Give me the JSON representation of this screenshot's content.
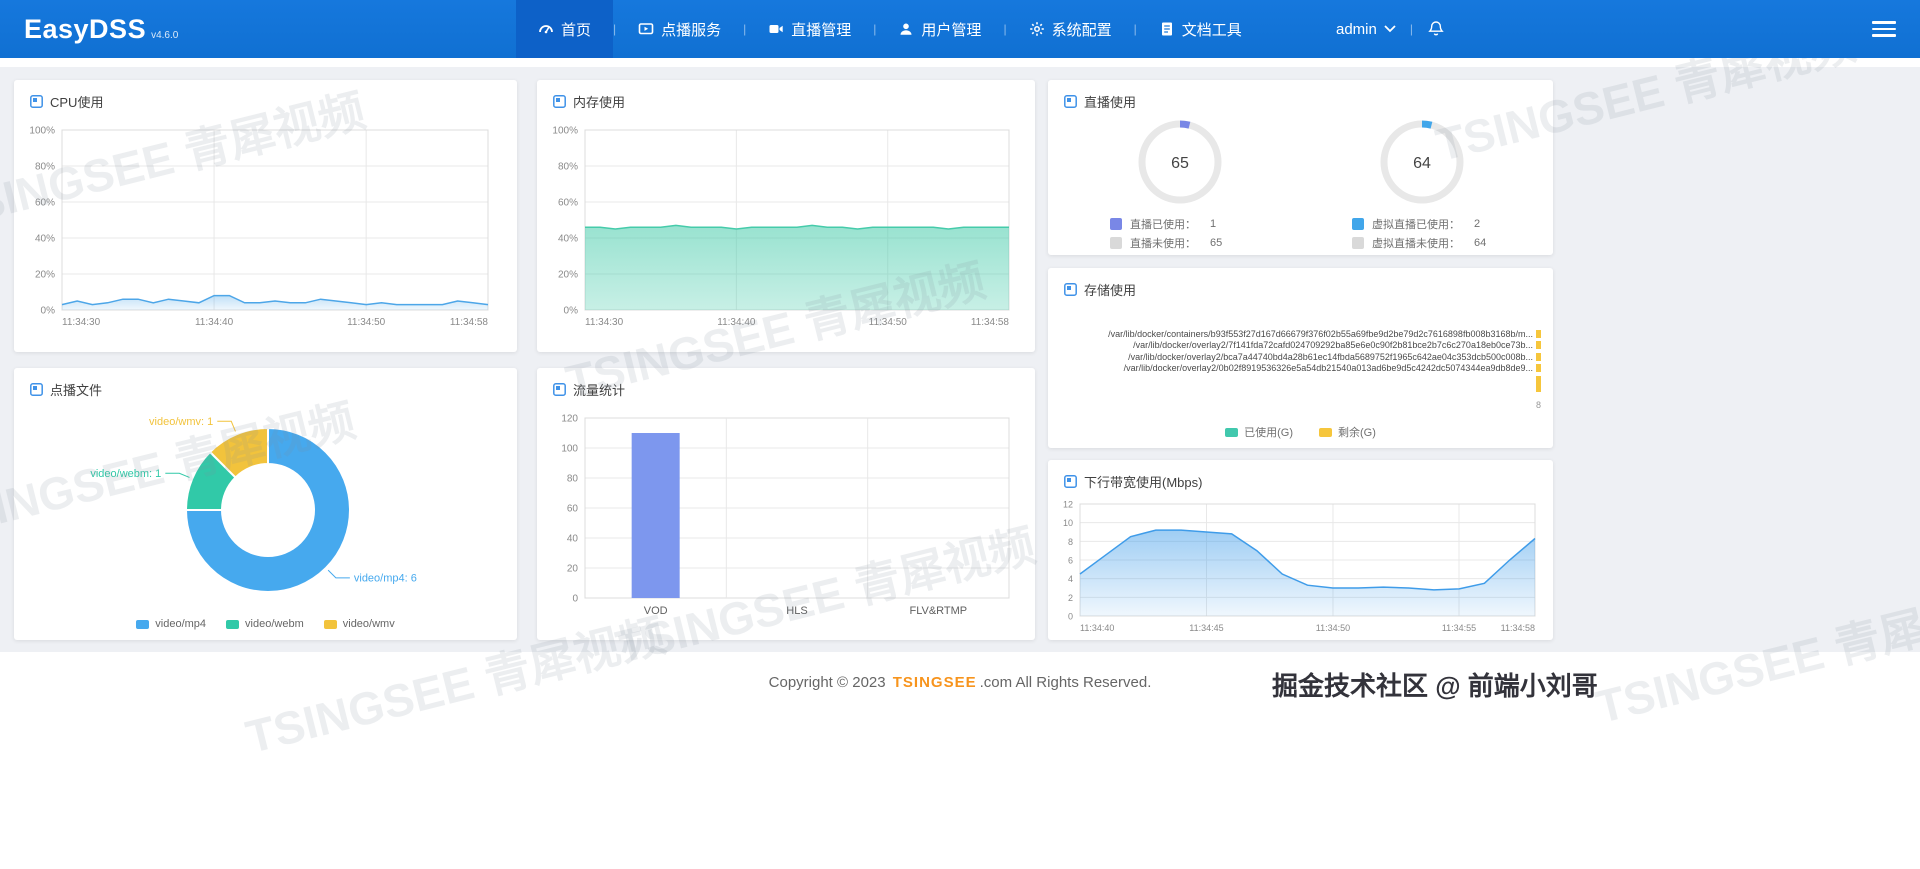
{
  "navbar": {
    "brand": "EasyDSS",
    "version": "v4.6.0",
    "items": [
      {
        "label": "首页"
      },
      {
        "label": "点播服务"
      },
      {
        "label": "直播管理"
      },
      {
        "label": "用户管理"
      },
      {
        "label": "系统配置"
      },
      {
        "label": "文档工具"
      }
    ],
    "user": "admin"
  },
  "cards": {
    "cpu": {
      "title": "CPU使用"
    },
    "memory": {
      "title": "内存使用"
    },
    "live": {
      "title": "直播使用"
    },
    "storage": {
      "title": "存储使用"
    },
    "vod": {
      "title": "点播文件"
    },
    "traffic": {
      "title": "流量统计"
    },
    "bandwidth": {
      "title": "下行带宽使用(Mbps)"
    }
  },
  "chart_data": [
    {
      "id": "cpu",
      "type": "line",
      "title": "CPU使用",
      "ylim": [
        0,
        100
      ],
      "y_ticks": [
        "0%",
        "20%",
        "40%",
        "60%",
        "80%",
        "100%"
      ],
      "x_ticks": [
        {
          "label": "11:34:30",
          "pos": 0
        },
        {
          "label": "11:34:40",
          "pos": 0.357
        },
        {
          "label": "11:34:50",
          "pos": 0.714
        },
        {
          "label": "11:34:58",
          "pos": 1
        }
      ],
      "values": [
        3,
        5,
        3,
        4,
        6,
        6,
        4,
        6,
        5,
        4,
        8,
        8,
        4,
        4,
        5,
        4,
        4,
        6,
        5,
        4,
        3,
        4,
        3,
        3,
        3,
        3,
        5,
        4,
        3
      ],
      "color": "#4da6e8",
      "fill": [
        0.35,
        0.08
      ]
    },
    {
      "id": "memory",
      "type": "line",
      "title": "内存使用",
      "ylim": [
        0,
        100
      ],
      "y_ticks": [
        "0%",
        "20%",
        "40%",
        "60%",
        "80%",
        "100%"
      ],
      "x_ticks": [
        {
          "label": "11:34:30",
          "pos": 0
        },
        {
          "label": "11:34:40",
          "pos": 0.357
        },
        {
          "label": "11:34:50",
          "pos": 0.714
        },
        {
          "label": "11:34:58",
          "pos": 1
        }
      ],
      "values": [
        46,
        46,
        45,
        46,
        46,
        46,
        47,
        46,
        46,
        46,
        45,
        46,
        46,
        46,
        46,
        47,
        46,
        46,
        45,
        46,
        46,
        46,
        46,
        46,
        45,
        46,
        46,
        46,
        46
      ],
      "color": "#45cbaa",
      "fill": [
        0.55,
        0.3
      ]
    },
    {
      "id": "live_gauges",
      "type": "donut-gauge",
      "title": "直播使用",
      "gauges": [
        {
          "center": 65,
          "used": 1,
          "free": 65,
          "used_label": "直播已使用：",
          "free_label": "直播未使用：",
          "color": "#7987e6",
          "free_color": "#d9d9d9"
        },
        {
          "center": 64,
          "used": 2,
          "free": 64,
          "used_label": "虚拟直播已使用：",
          "free_label": "虚拟直播未使用：",
          "color": "#41a6ea",
          "free_color": "#d9d9d9"
        }
      ]
    },
    {
      "id": "storage",
      "type": "hbar",
      "title": "存储使用",
      "categories": [
        "/var/lib/docker/containers/b93f553f27d167d66679f376f02b55a69fbe9d2be79d2c7616898fb008b3168b/m...",
        "/var/lib/docker/overlay2/7f141fda72cafd024709292ba85e6e0c90f2b81bce2b7c6c270a18eb0ce73b...",
        "/var/lib/docker/overlay2/bca7a44740bd4a28b61ec14fbda5689752f1965c642ae04c353dcb500c008b...",
        "/var/lib/docker/overlay2/0b02f8919536326e5a54db21540a013ad6be9d5c4242dc5074344ea9db8de9..."
      ],
      "series": [
        {
          "name": "已使用(G)",
          "color": "#41c8ad"
        },
        {
          "name": "剩余(G)",
          "color": "#f6c63c"
        }
      ],
      "axis_max_label": "8"
    },
    {
      "id": "vod_pie",
      "type": "pie",
      "title": "点播文件",
      "slices": [
        {
          "name": "video/mp4",
          "value": 6,
          "color": "#46a9ee"
        },
        {
          "name": "video/webm",
          "value": 1,
          "color": "#31c9a8"
        },
        {
          "name": "video/wmv",
          "value": 1,
          "color": "#f2c33c"
        }
      ]
    },
    {
      "id": "traffic",
      "type": "bar",
      "title": "流量统计",
      "categories": [
        "VOD",
        "HLS",
        "FLV&RTMP"
      ],
      "values": [
        110,
        0,
        0
      ],
      "ylim": [
        0,
        120
      ],
      "y_ticks": [
        "0",
        "20",
        "40",
        "60",
        "80",
        "100",
        "120"
      ],
      "bar_color": "#7d97ee"
    },
    {
      "id": "bandwidth",
      "type": "line",
      "title": "下行带宽使用(Mbps)",
      "ylim": [
        0,
        12
      ],
      "y_ticks": [
        "0",
        "2",
        "4",
        "6",
        "8",
        "10",
        "12"
      ],
      "x_ticks": [
        {
          "label": "11:34:40",
          "pos": 0
        },
        {
          "label": "11:34:45",
          "pos": 0.278
        },
        {
          "label": "11:34:50",
          "pos": 0.556
        },
        {
          "label": "11:34:55",
          "pos": 0.833
        },
        {
          "label": "11:34:58",
          "pos": 1
        }
      ],
      "values": [
        4.5,
        6.5,
        8.5,
        9.2,
        9.2,
        9,
        8.8,
        7,
        4.5,
        3.3,
        3,
        3,
        3.1,
        3,
        2.8,
        2.9,
        3.5,
        6,
        8.3
      ],
      "color": "#3f9ce9",
      "fill": [
        0.5,
        0.08
      ]
    }
  ],
  "footer": {
    "prefix": "Copyright © 2023",
    "brand": "TSINGSEE",
    "suffix": ".com All Rights Reserved."
  },
  "overlay": "掘金技术社区 @ 前端小刘哥",
  "watermark": "TSINGSEE 青犀视频"
}
